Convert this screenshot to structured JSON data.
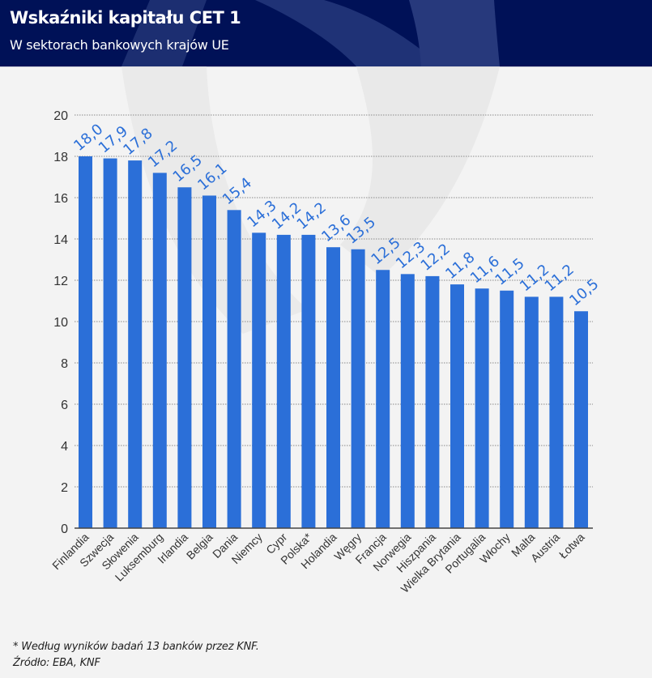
{
  "header": {
    "title": "Wskaźniki kapitału CET 1",
    "subtitle": "W sektorach bankowych krajów UE",
    "background_color": "#001157"
  },
  "footer": {
    "footnote": "* Według wyników badań 13 banków przez KNF.",
    "source": "Źródło: EBA, KNF"
  },
  "chart_data": {
    "type": "bar",
    "title": "Wskaźniki kapitału CET 1",
    "subtitle": "W sektorach bankowych krajów UE",
    "xlabel": "",
    "ylabel": "",
    "ylim": [
      0,
      20
    ],
    "yticks": [
      0,
      2,
      4,
      6,
      8,
      10,
      12,
      14,
      16,
      18,
      20
    ],
    "grid": true,
    "legend": "none",
    "bar_color": "#2b6fd8",
    "label_color": "#2b6fd8",
    "categories": [
      "Finlandia",
      "Szwecja",
      "Słowenia",
      "Luksemburg",
      "Irlandia",
      "Belgia",
      "Dania",
      "Niemcy",
      "Cypr",
      "Polska*",
      "Holandia",
      "Węgry",
      "Francja",
      "Norwegia",
      "Hiszpania",
      "Wielka Brytania",
      "Portugalia",
      "Włochy",
      "Malta",
      "Austria",
      "Łotwa"
    ],
    "values": [
      18.0,
      17.9,
      17.8,
      17.2,
      16.5,
      16.1,
      15.4,
      14.3,
      14.2,
      14.2,
      13.6,
      13.5,
      12.5,
      12.3,
      12.2,
      11.8,
      11.6,
      11.5,
      11.2,
      11.2,
      10.5
    ],
    "value_labels": [
      "18,0",
      "17,9",
      "17,8",
      "17,2",
      "16,5",
      "16,1",
      "15,4",
      "14,3",
      "14,2",
      "14,2",
      "13,6",
      "13,5",
      "12,5",
      "12,3",
      "12,2",
      "11,8",
      "11,6",
      "11,5",
      "11,2",
      "11,2",
      "10,5"
    ]
  }
}
